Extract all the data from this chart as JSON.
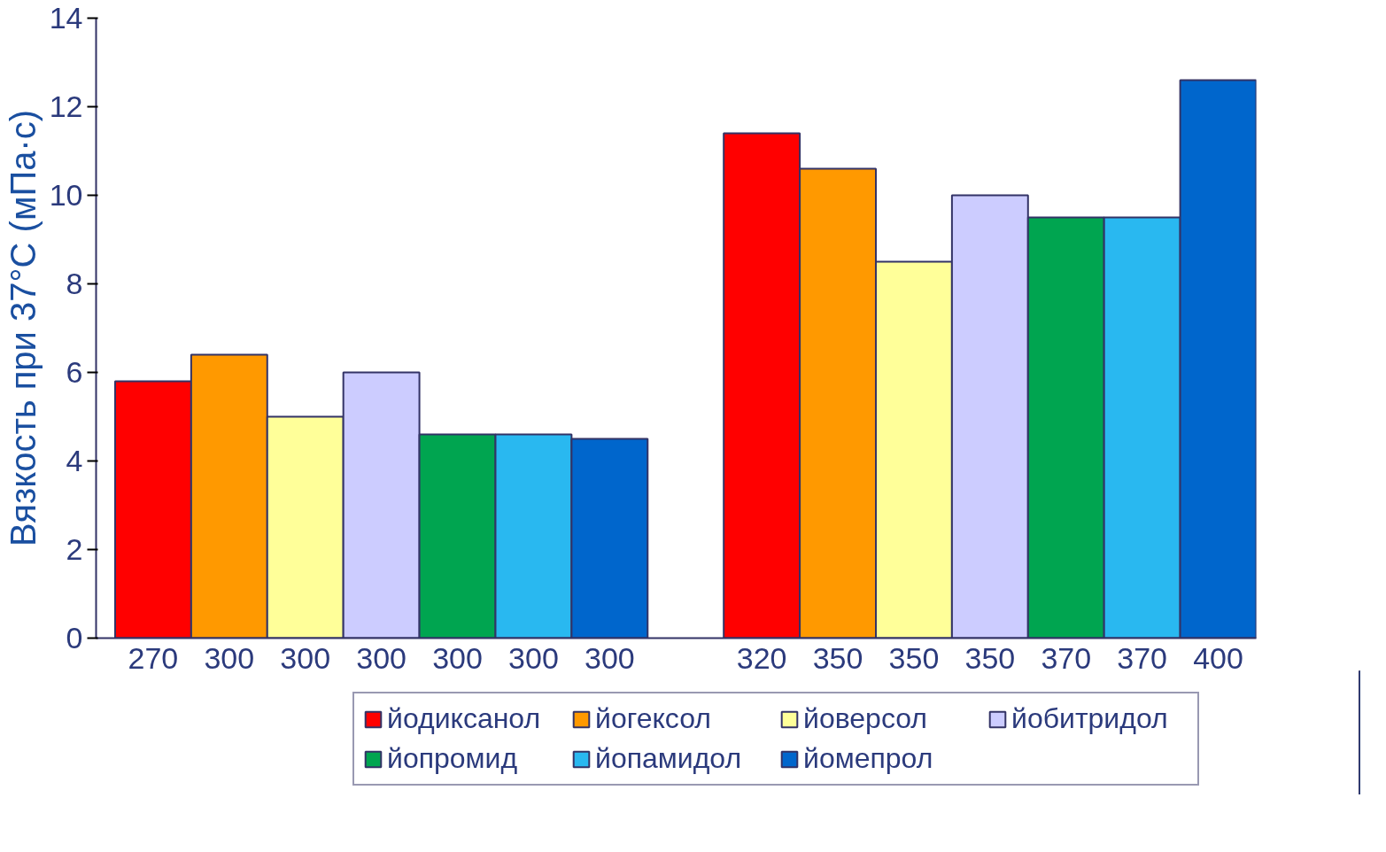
{
  "chart_data": {
    "type": "bar",
    "ylabel": "Вязкость при 37°C (мПа·с)",
    "categories": [
      "270",
      "300",
      "300",
      "300",
      "300",
      "300",
      "300",
      null,
      "320",
      "350",
      "350",
      "350",
      "370",
      "370",
      "400"
    ],
    "series": [
      {
        "name": "йодиксанол",
        "color": "#ff0000",
        "values": [
          5.8,
          null,
          null,
          null,
          null,
          null,
          null,
          null,
          11.4,
          null,
          null,
          null,
          null,
          null,
          null
        ]
      },
      {
        "name": "йогексол",
        "color": "#ff9900",
        "values": [
          null,
          6.4,
          null,
          null,
          null,
          null,
          null,
          null,
          null,
          10.6,
          null,
          null,
          null,
          null,
          null
        ]
      },
      {
        "name": "йоверсол",
        "color": "#ffff99",
        "values": [
          null,
          null,
          5.0,
          null,
          null,
          null,
          null,
          null,
          null,
          null,
          8.5,
          null,
          null,
          null,
          null
        ]
      },
      {
        "name": "йобитридол",
        "color": "#ccccff",
        "values": [
          null,
          null,
          null,
          6.0,
          null,
          null,
          null,
          null,
          null,
          null,
          null,
          10.0,
          null,
          null,
          null
        ]
      },
      {
        "name": "йопромид",
        "color": "#00a550",
        "values": [
          null,
          null,
          null,
          null,
          4.6,
          null,
          null,
          null,
          null,
          null,
          null,
          null,
          9.5,
          null,
          null
        ]
      },
      {
        "name": "йопамидол",
        "color": "#29b8f0",
        "values": [
          null,
          null,
          null,
          null,
          null,
          4.6,
          null,
          null,
          null,
          null,
          null,
          null,
          null,
          9.5,
          null
        ]
      },
      {
        "name": "йомепрол",
        "color": "#0066cc",
        "values": [
          null,
          null,
          null,
          null,
          null,
          null,
          4.5,
          null,
          null,
          null,
          null,
          null,
          null,
          null,
          12.6
        ]
      }
    ],
    "ylim": [
      0,
      14
    ],
    "yticks": [
      0,
      2,
      4,
      6,
      8,
      10,
      12,
      14
    ],
    "grid": false,
    "legend": "bottom"
  }
}
